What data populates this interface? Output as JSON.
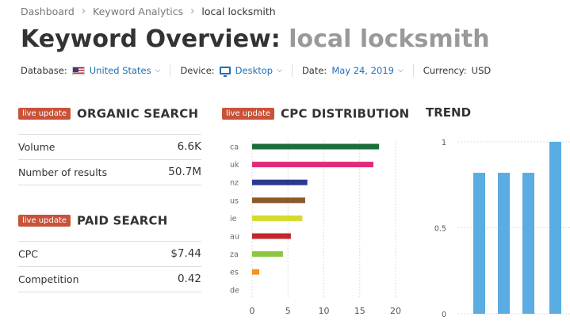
{
  "breadcrumb": {
    "items": [
      "Dashboard",
      "Keyword Analytics",
      "local locksmith"
    ]
  },
  "header": {
    "title": "Keyword Overview:",
    "keyword": "local locksmith"
  },
  "filters": {
    "database_label": "Database:",
    "database_value": "United States",
    "device_label": "Device:",
    "device_value": "Desktop",
    "date_label": "Date:",
    "date_value": "May 24, 2019",
    "currency_label": "Currency:",
    "currency_value": "USD"
  },
  "badge_label": "live update",
  "organic": {
    "title": "ORGANIC SEARCH",
    "metrics": [
      {
        "label": "Volume",
        "value": "6.6K"
      },
      {
        "label": "Number of results",
        "value": "50.7M"
      }
    ]
  },
  "paid": {
    "title": "PAID SEARCH",
    "metrics": [
      {
        "label": "CPC",
        "value": "$7.44"
      },
      {
        "label": "Competition",
        "value": "0.42"
      }
    ]
  },
  "cpc_title": "CPC DISTRIBUTION",
  "trend_title": "TREND",
  "colors": {
    "badge": "#c8533a",
    "link": "#1f6fb5",
    "trend_bar": "#5aace2"
  },
  "chart_data": [
    {
      "type": "bar",
      "orientation": "horizontal",
      "title": "CPC DISTRIBUTION",
      "categories": [
        "ca",
        "uk",
        "nz",
        "us",
        "ie",
        "au",
        "za",
        "es",
        "de"
      ],
      "values": [
        17.7,
        16.9,
        7.7,
        7.4,
        7.0,
        5.4,
        4.3,
        1.0,
        0
      ],
      "colors": [
        "#1b6e3a",
        "#e5297a",
        "#2b3990",
        "#8b5a2b",
        "#d4dc2a",
        "#c1272d",
        "#8cc63f",
        "#f7931e",
        "#cccccc"
      ],
      "xlim": [
        0,
        20
      ],
      "xticks": [
        0,
        5,
        10,
        15,
        20
      ],
      "grid": true
    },
    {
      "type": "bar",
      "title": "TREND",
      "values": [
        0.82,
        0.82,
        0.82,
        1.0
      ],
      "ylim": [
        0,
        1
      ],
      "yticks": [
        0,
        0.5,
        1
      ],
      "grid": true
    }
  ]
}
